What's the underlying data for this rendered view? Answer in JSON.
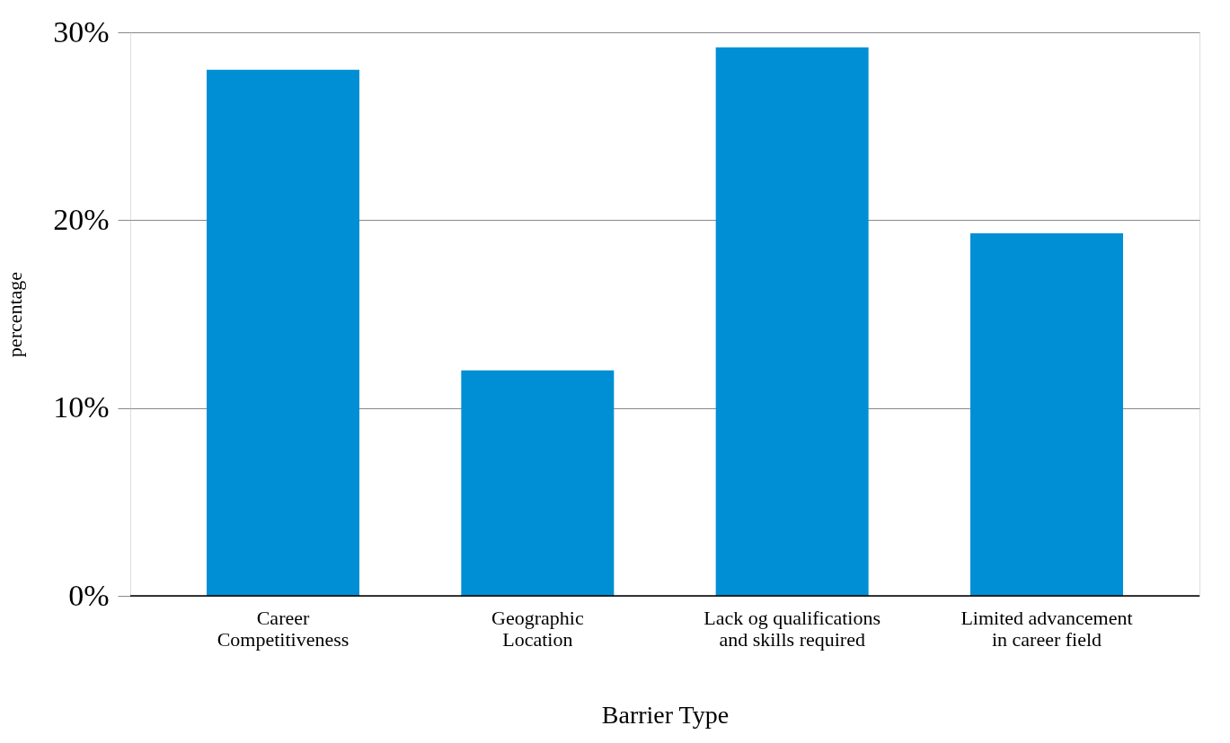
{
  "chart_data": {
    "type": "bar",
    "xlabel": "Barrier Type",
    "ylabel": "percentage",
    "categories": [
      "Career\nCompetitiveness",
      "Geographic\nLocation",
      "Lack og qualifications\nand skills required",
      "Limited advancement\nin career field"
    ],
    "values": [
      28.0,
      12.0,
      29.2,
      19.3
    ],
    "color": "#008fd5",
    "ylim": [
      0,
      30
    ],
    "yticks": [
      {
        "value": 0,
        "label": "0%"
      },
      {
        "value": 10,
        "label": "10%"
      },
      {
        "value": 20,
        "label": "20%"
      },
      {
        "value": 30,
        "label": "30%"
      }
    ],
    "grid": "y"
  }
}
